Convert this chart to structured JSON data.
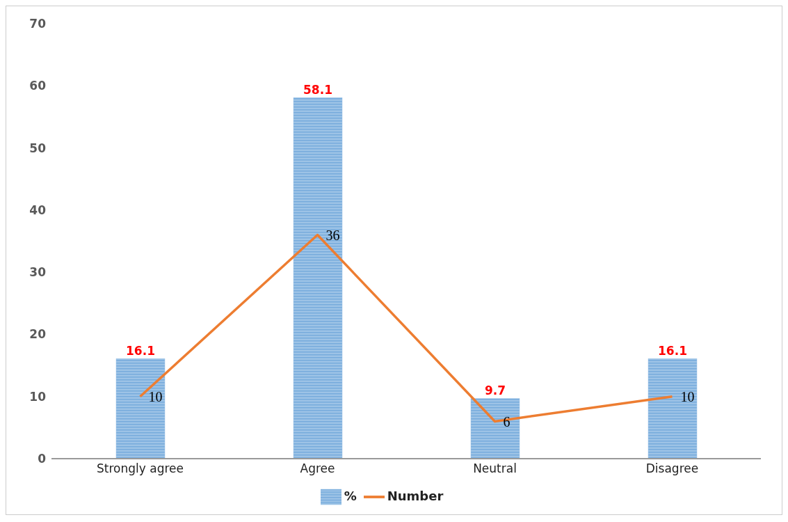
{
  "chart_data": {
    "type": "bar",
    "categories": [
      "Strongly agree",
      "Agree",
      "Neutral",
      "Disagree"
    ],
    "series": [
      {
        "name": "%",
        "color": "#9dc3e6",
        "values": [
          16.1,
          58.1,
          9.7,
          16.1
        ]
      },
      {
        "name": "Number",
        "type": "line",
        "color": "#ed7d31",
        "values": [
          10,
          36,
          6,
          10
        ]
      }
    ],
    "ylim": [
      0,
      70
    ],
    "yticks": [
      0,
      10,
      20,
      30,
      40,
      50,
      60,
      70
    ],
    "grid": false,
    "legend": "bottom",
    "data_labels": true,
    "marker": "none"
  }
}
